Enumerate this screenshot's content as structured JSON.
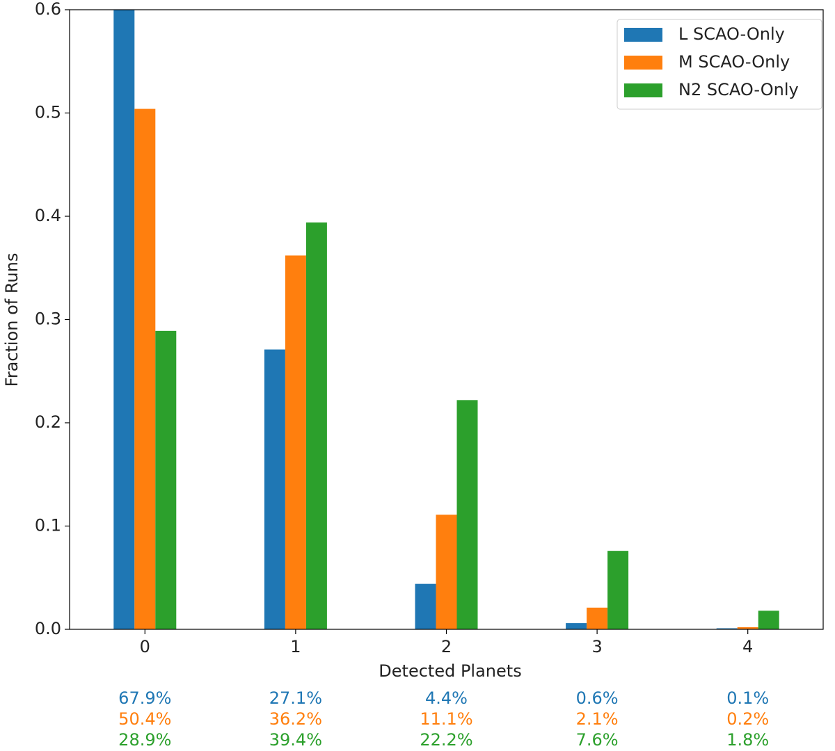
{
  "chart_data": {
    "type": "bar",
    "xlabel": "Detected Planets",
    "ylabel": "Fraction of Runs",
    "categories": [
      0,
      1,
      2,
      3,
      4
    ],
    "ylim": [
      0,
      0.6
    ],
    "yticks": [
      {
        "value": 0,
        "label": "0.0"
      },
      0.1,
      0.2,
      0.3,
      0.4,
      0.5,
      0.6
    ],
    "legend": "upper right",
    "series": [
      {
        "name": "L SCAO-Only",
        "color": "#1f77b4",
        "values": [
          0.679,
          0.271,
          0.044,
          0.006,
          0.001
        ],
        "value_labels": [
          "67.9%",
          "27.1%",
          "4.4%",
          "0.6%",
          "0.1%"
        ]
      },
      {
        "name": "M SCAO-Only",
        "color": "#ff7f0e",
        "values": [
          0.504,
          0.362,
          0.111,
          0.021,
          0.002
        ],
        "value_labels": [
          "50.4%",
          "36.2%",
          "11.1%",
          "2.1%",
          "0.2%"
        ]
      },
      {
        "name": "N2 SCAO-Only",
        "color": "#2ca02c",
        "values": [
          0.289,
          0.394,
          0.222,
          0.076,
          0.018
        ],
        "value_labels": [
          "28.9%",
          "39.4%",
          "22.2%",
          "7.6%",
          "1.8%"
        ]
      }
    ]
  }
}
